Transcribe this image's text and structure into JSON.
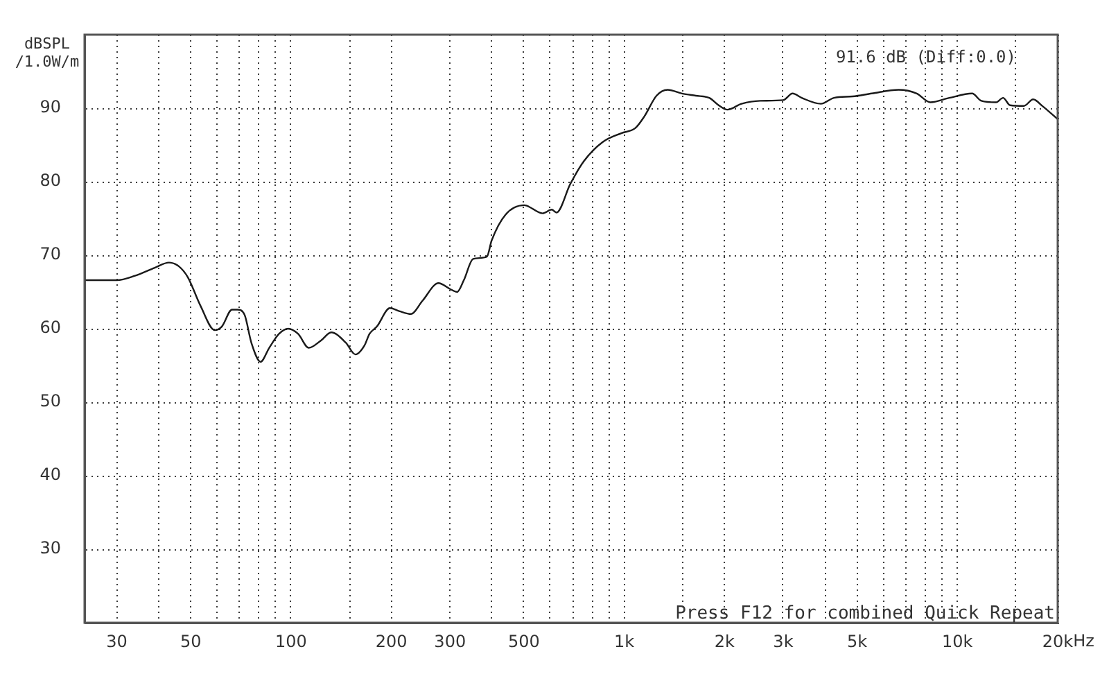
{
  "chart_data": {
    "type": "line",
    "ylabel": "dBSPL /1.0W/m",
    "xlabel": "Hz",
    "annotations": [
      "91.6 dB (Diff:0.0)",
      "Press F12 for combined Quick Repeat"
    ],
    "log": "x",
    "grid": true,
    "xlim": [
      24,
      20000
    ],
    "ylim": [
      20,
      100
    ],
    "xticks": [
      30,
      {
        "value": 40,
        "label": null
      },
      50,
      {
        "value": 60,
        "label": null
      },
      {
        "value": 70,
        "label": null
      },
      {
        "value": 80,
        "label": null
      },
      {
        "value": 90,
        "label": null
      },
      100,
      {
        "value": 150,
        "label": null
      },
      200,
      300,
      {
        "value": 400,
        "label": null
      },
      500,
      {
        "value": 600,
        "label": null
      },
      {
        "value": 700,
        "label": null
      },
      {
        "value": 800,
        "label": null
      },
      {
        "value": 900,
        "label": null
      },
      {
        "value": 1000,
        "label": "1k"
      },
      {
        "value": 1500,
        "label": null
      },
      {
        "value": 2000,
        "label": "2k"
      },
      {
        "value": 3000,
        "label": "3k"
      },
      {
        "value": 4000,
        "label": null
      },
      {
        "value": 5000,
        "label": "5k"
      },
      {
        "value": 6000,
        "label": null
      },
      {
        "value": 7000,
        "label": null
      },
      {
        "value": 8000,
        "label": null
      },
      {
        "value": 9000,
        "label": null
      },
      {
        "value": 10000,
        "label": "10k"
      },
      {
        "value": 15000,
        "label": null
      },
      {
        "value": 20000,
        "label": "20k"
      }
    ],
    "yticks": [
      30,
      40,
      50,
      60,
      70,
      80,
      90
    ],
    "x": [
      24,
      30,
      34,
      39,
      43,
      46,
      49,
      53.5,
      59,
      62,
      66.5,
      69,
      72.5,
      76,
      81,
      86,
      92,
      98,
      105,
      113,
      123,
      132,
      146,
      156,
      166,
      172,
      181,
      198,
      211,
      229,
      248,
      277,
      300,
      315,
      330,
      352,
      387,
      400,
      440,
      501,
      569,
      606,
      626,
      689,
      757,
      862,
      980,
      1080,
      1150,
      1250,
      1350,
      1490,
      1640,
      1800,
      1920,
      2040,
      2250,
      2560,
      3000,
      3200,
      3410,
      3890,
      4260,
      4850,
      5530,
      6660,
      7550,
      8300,
      9450,
      11070,
      11800,
      13060,
      13710,
      14390,
      15830,
      16880,
      17990,
      20000
    ],
    "series": [
      {
        "color": "#1a1a1a",
        "values": [
          66.6,
          66.6,
          67.2,
          68.3,
          69.0,
          68.5,
          67.0,
          63.1,
          59.8,
          60.3,
          62.6,
          62.6,
          61.9,
          58.1,
          55.5,
          57.4,
          59.3,
          60.0,
          59.3,
          57.4,
          58.4,
          59.5,
          58.1,
          56.5,
          57.7,
          59.3,
          60.3,
          62.8,
          62.4,
          62.0,
          63.8,
          66.2,
          65.4,
          65.0,
          66.6,
          69.5,
          69.8,
          72.0,
          75.5,
          76.8,
          75.7,
          76.2,
          75.8,
          79.7,
          82.8,
          85.4,
          86.6,
          87.3,
          88.9,
          91.7,
          92.5,
          92.0,
          91.7,
          91.4,
          90.4,
          89.8,
          90.6,
          91.0,
          91.1,
          92.0,
          91.4,
          90.6,
          91.4,
          91.6,
          92.0,
          92.5,
          92.0,
          90.8,
          91.4,
          92.0,
          91.0,
          90.8,
          91.4,
          90.4,
          90.3,
          91.2,
          90.3,
          88.5
        ]
      }
    ]
  }
}
